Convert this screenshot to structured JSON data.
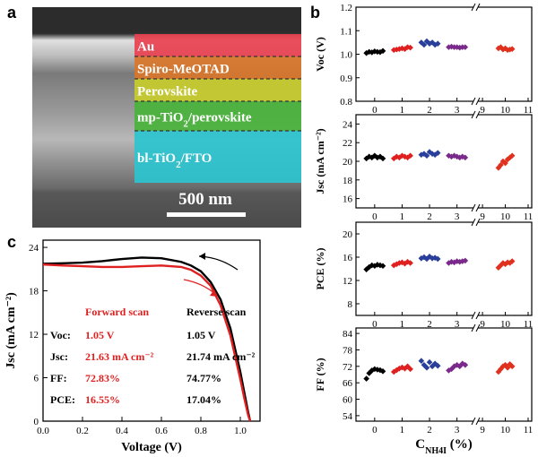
{
  "panel_a": {
    "letter": "a",
    "layers": [
      {
        "label": "Au",
        "color": "#e8414f"
      },
      {
        "label": "Spiro-MeOTAD",
        "color": "#d9762a"
      },
      {
        "label": "Perovskite",
        "color": "#c8cc2c"
      },
      {
        "label": "mp-TiO2/perovskite",
        "color": "#4ab33c"
      },
      {
        "label": "bl-TiO2/FTO",
        "color": "#2bc4cf"
      }
    ],
    "scale_bar": "500 nm"
  },
  "panel_b": {
    "letter": "b",
    "x_axis_label": "C",
    "x_axis_sub": "NH4I",
    "x_axis_unit": " (%)",
    "x_ticks": [
      "0",
      "1",
      "2",
      "3",
      "9",
      "10",
      "11"
    ],
    "series_colors": [
      "#000000",
      "#e02020",
      "#2a3f9a",
      "#7a2a8a",
      "#e0301e"
    ],
    "subplots": [
      {
        "ylabel": "Voc (V)",
        "yticks": [
          "0.8",
          "0.9",
          "1.0",
          "1.1",
          "1.2"
        ]
      },
      {
        "ylabel": "Jsc (mA cm⁻²)",
        "yticks": [
          "16",
          "18",
          "20",
          "22",
          "24"
        ]
      },
      {
        "ylabel": "PCE (%)",
        "yticks": [
          "8",
          "12",
          "16",
          "20"
        ]
      },
      {
        "ylabel": "FF (%)",
        "yticks": [
          "54",
          "60",
          "66",
          "72",
          "78",
          "84"
        ]
      }
    ]
  },
  "panel_c": {
    "letter": "c",
    "xlabel": "Voltage (V)",
    "ylabel": "Jsc (mA cm⁻²)",
    "xticks": [
      "0.0",
      "0.2",
      "0.4",
      "0.6",
      "0.8",
      "1.0"
    ],
    "yticks": [
      "0",
      "6",
      "12",
      "18",
      "24"
    ],
    "table": {
      "col_forward": "Forward scan",
      "col_reverse": "Reverse scan",
      "rows": [
        {
          "label": "Voc:",
          "forward": "1.05 V",
          "reverse": "1.05 V"
        },
        {
          "label": "Jsc:",
          "forward": "21.63 mA cm⁻²",
          "reverse": "21.74 mA cm⁻²"
        },
        {
          "label": "FF:",
          "forward": "72.83%",
          "reverse": "74.77%"
        },
        {
          "label": "PCE:",
          "forward": "16.55%",
          "reverse": "17.04%"
        }
      ]
    }
  },
  "chart_data": [
    {
      "type": "scatter",
      "panel": "b-Voc",
      "ylabel": "Voc (V)",
      "ylim": [
        0.8,
        1.2
      ],
      "series": [
        {
          "x": [
            -0.3,
            -0.2,
            -0.1,
            0.0,
            0.1,
            0.2,
            0.3
          ],
          "y": [
            1.005,
            1.01,
            1.008,
            1.012,
            1.01,
            1.009,
            1.014
          ]
        },
        {
          "x": [
            0.7,
            0.8,
            0.9,
            1.0,
            1.1,
            1.2,
            1.3
          ],
          "y": [
            1.018,
            1.02,
            1.022,
            1.025,
            1.022,
            1.03,
            1.028
          ]
        },
        {
          "x": [
            1.7,
            1.8,
            1.9,
            2.0,
            2.1,
            2.2,
            2.3
          ],
          "y": [
            1.05,
            1.04,
            1.055,
            1.045,
            1.05,
            1.04,
            1.045
          ]
        },
        {
          "x": [
            2.7,
            2.8,
            2.9,
            3.0,
            3.1,
            3.2,
            3.3
          ],
          "y": [
            1.03,
            1.032,
            1.03,
            1.03,
            1.028,
            1.03,
            1.03
          ]
        },
        {
          "x": [
            9.7,
            9.8,
            9.9,
            10.0,
            10.1,
            10.2,
            10.3
          ],
          "y": [
            1.025,
            1.03,
            1.02,
            1.025,
            1.018,
            1.02,
            1.022
          ]
        }
      ]
    },
    {
      "type": "scatter",
      "panel": "b-Jsc",
      "ylabel": "Jsc (mA cm⁻²)",
      "ylim": [
        15,
        25
      ],
      "series": [
        {
          "x": [
            -0.3,
            -0.2,
            -0.1,
            0.0,
            0.1,
            0.2,
            0.3
          ],
          "y": [
            20.3,
            20.5,
            20.4,
            20.6,
            20.4,
            20.5,
            20.3
          ]
        },
        {
          "x": [
            0.7,
            0.8,
            0.9,
            1.0,
            1.1,
            1.2,
            1.3
          ],
          "y": [
            20.3,
            20.5,
            20.4,
            20.6,
            20.5,
            20.4,
            20.6
          ]
        },
        {
          "x": [
            1.7,
            1.8,
            1.9,
            2.0,
            2.1,
            2.2,
            2.3
          ],
          "y": [
            20.7,
            20.8,
            20.6,
            21.0,
            20.8,
            20.7,
            20.9
          ]
        },
        {
          "x": [
            2.7,
            2.8,
            2.9,
            3.0,
            3.1,
            3.2,
            3.3
          ],
          "y": [
            20.6,
            20.5,
            20.6,
            20.5,
            20.4,
            20.5,
            20.4
          ]
        },
        {
          "x": [
            9.7,
            9.8,
            9.9,
            10.0,
            10.1,
            10.2,
            10.3
          ],
          "y": [
            19.3,
            19.6,
            20.0,
            19.8,
            20.2,
            20.4,
            20.6
          ]
        }
      ]
    },
    {
      "type": "scatter",
      "panel": "b-PCE",
      "ylabel": "PCE (%)",
      "ylim": [
        6,
        22
      ],
      "series": [
        {
          "x": [
            -0.3,
            -0.2,
            -0.1,
            0.0,
            0.1,
            0.2,
            0.3
          ],
          "y": [
            13.9,
            14.3,
            14.6,
            14.5,
            14.7,
            14.6,
            14.5
          ]
        },
        {
          "x": [
            0.7,
            0.8,
            0.9,
            1.0,
            1.1,
            1.2,
            1.3
          ],
          "y": [
            14.6,
            14.8,
            15.0,
            15.1,
            14.9,
            15.2,
            15.0
          ]
        },
        {
          "x": [
            1.7,
            1.8,
            1.9,
            2.0,
            2.1,
            2.2,
            2.3
          ],
          "y": [
            15.8,
            16.0,
            15.7,
            16.1,
            15.8,
            15.9,
            15.7
          ]
        },
        {
          "x": [
            2.7,
            2.8,
            2.9,
            3.0,
            3.1,
            3.2,
            3.3
          ],
          "y": [
            15.0,
            15.2,
            15.1,
            15.3,
            15.2,
            15.3,
            15.4
          ]
        },
        {
          "x": [
            9.7,
            9.8,
            9.9,
            10.0,
            10.1,
            10.2,
            10.3
          ],
          "y": [
            14.2,
            14.6,
            15.0,
            14.8,
            15.1,
            15.0,
            15.3
          ]
        }
      ]
    },
    {
      "type": "scatter",
      "panel": "b-FF",
      "ylabel": "FF (%)",
      "ylim": [
        52,
        86
      ],
      "series": [
        {
          "x": [
            -0.3,
            -0.2,
            -0.1,
            0.0,
            0.1,
            0.2,
            0.3
          ],
          "y": [
            67.5,
            69.5,
            70.5,
            71.0,
            70.8,
            70.6,
            70.2
          ]
        },
        {
          "x": [
            0.7,
            0.8,
            0.9,
            1.0,
            1.1,
            1.2,
            1.3
          ],
          "y": [
            70.0,
            70.6,
            71.2,
            71.6,
            71.2,
            72.0,
            71.0
          ]
        },
        {
          "x": [
            1.7,
            1.8,
            1.9,
            2.0,
            2.1,
            2.2,
            2.3
          ],
          "y": [
            74.0,
            72.5,
            71.5,
            73.5,
            72.0,
            73.0,
            72.2
          ]
        },
        {
          "x": [
            2.7,
            2.8,
            2.9,
            3.0,
            3.1,
            3.2,
            3.3
          ],
          "y": [
            70.5,
            71.0,
            72.0,
            72.5,
            72.0,
            73.0,
            72.5
          ]
        },
        {
          "x": [
            9.7,
            9.8,
            9.9,
            10.0,
            10.1,
            10.2,
            10.3
          ],
          "y": [
            70.0,
            71.0,
            72.0,
            72.5,
            71.5,
            72.8,
            72.0
          ]
        }
      ]
    },
    {
      "type": "line",
      "panel": "c",
      "xlabel": "Voltage (V)",
      "ylabel": "Jsc (mA cm⁻²)",
      "xlim": [
        0.0,
        1.1
      ],
      "ylim": [
        0,
        25
      ],
      "series": [
        {
          "name": "Reverse scan",
          "color": "#000000",
          "x": [
            0.0,
            0.1,
            0.2,
            0.3,
            0.4,
            0.5,
            0.6,
            0.7,
            0.75,
            0.8,
            0.85,
            0.9,
            0.95,
            1.0,
            1.02,
            1.04,
            1.05
          ],
          "y": [
            21.74,
            21.8,
            21.9,
            22.1,
            22.4,
            22.6,
            22.5,
            22.0,
            21.5,
            20.7,
            19.2,
            16.8,
            12.8,
            6.8,
            4.0,
            1.2,
            0.0
          ]
        },
        {
          "name": "Forward scan",
          "color": "#e02020",
          "x": [
            0.0,
            0.1,
            0.2,
            0.3,
            0.4,
            0.5,
            0.6,
            0.7,
            0.75,
            0.8,
            0.85,
            0.9,
            0.95,
            1.0,
            1.02,
            1.04,
            1.05
          ],
          "y": [
            21.63,
            21.5,
            21.4,
            21.3,
            21.3,
            21.4,
            21.5,
            21.3,
            20.9,
            20.1,
            18.7,
            16.0,
            11.8,
            5.8,
            3.2,
            0.8,
            0.0
          ]
        }
      ]
    }
  ]
}
